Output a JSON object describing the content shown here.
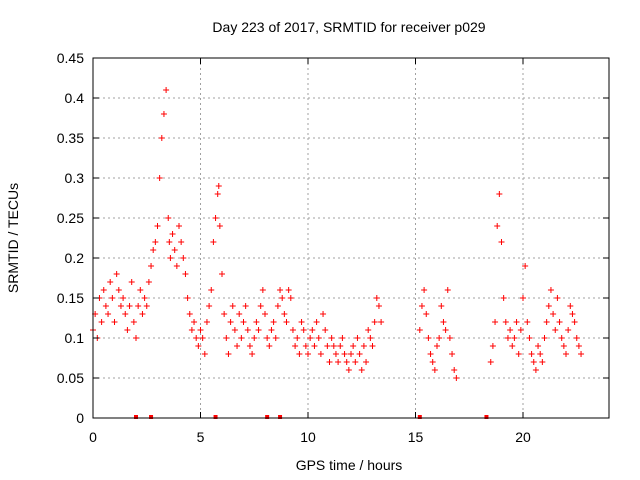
{
  "chart_data": {
    "type": "scatter",
    "title": "Day 223 of 2017, SRMTID for receiver p029",
    "xlabel": "GPS time / hours",
    "ylabel": "SRMTID / TECUs",
    "xlim": [
      0,
      24
    ],
    "ylim": [
      0,
      0.45
    ],
    "xticks": [
      0,
      5,
      10,
      15,
      20
    ],
    "xtick_labels": [
      "0",
      "5",
      "10",
      "15",
      "20"
    ],
    "yticks": [
      0,
      0.05,
      0.1,
      0.15,
      0.2,
      0.25,
      0.3,
      0.35,
      0.4,
      0.45
    ],
    "ytick_labels": [
      "0",
      "0.05",
      "0.1",
      "0.15",
      "0.2",
      "0.25",
      "0.3",
      "0.35",
      "0.4",
      "0.45"
    ],
    "grid": true,
    "marker": "+",
    "series_color": "#ff0000",
    "series": [
      {
        "name": "SRMTID",
        "x": [
          0.0,
          0.1,
          0.2,
          0.3,
          0.4,
          0.5,
          0.6,
          0.7,
          0.8,
          0.9,
          1.0,
          1.1,
          1.2,
          1.3,
          1.4,
          1.5,
          1.6,
          1.7,
          1.8,
          1.9,
          2.0,
          2.1,
          2.2,
          2.3,
          2.4,
          2.5,
          2.6,
          2.7,
          2.8,
          2.9,
          3.0,
          3.1,
          3.2,
          3.3,
          3.4,
          3.5,
          3.55,
          3.6,
          3.7,
          3.8,
          3.9,
          4.0,
          4.1,
          4.2,
          4.3,
          4.4,
          4.5,
          4.6,
          4.7,
          4.8,
          4.9,
          5.0,
          5.1,
          5.2,
          5.3,
          5.4,
          5.5,
          5.6,
          5.7,
          5.8,
          5.85,
          5.9,
          6.0,
          6.1,
          6.2,
          6.3,
          6.4,
          6.5,
          6.6,
          6.7,
          6.8,
          6.9,
          7.0,
          7.1,
          7.2,
          7.3,
          7.4,
          7.5,
          7.6,
          7.7,
          7.8,
          7.9,
          8.0,
          8.1,
          8.2,
          8.3,
          8.4,
          8.5,
          8.6,
          8.7,
          8.8,
          8.9,
          9.0,
          9.1,
          9.2,
          9.3,
          9.4,
          9.5,
          9.6,
          9.7,
          9.8,
          9.9,
          10.0,
          10.1,
          10.2,
          10.3,
          10.4,
          10.5,
          10.6,
          10.7,
          10.8,
          10.9,
          11.0,
          11.1,
          11.2,
          11.3,
          11.4,
          11.5,
          11.6,
          11.7,
          11.8,
          11.9,
          12.0,
          12.1,
          12.2,
          12.3,
          12.4,
          12.5,
          12.6,
          12.7,
          12.8,
          12.9,
          13.0,
          13.1,
          13.2,
          13.3,
          13.4,
          15.2,
          15.3,
          15.4,
          15.5,
          15.6,
          15.7,
          15.8,
          15.9,
          16.0,
          16.1,
          16.2,
          16.3,
          16.4,
          16.5,
          16.6,
          16.7,
          16.8,
          16.9,
          18.5,
          18.6,
          18.7,
          18.8,
          18.9,
          19.0,
          19.1,
          19.2,
          19.3,
          19.4,
          19.5,
          19.6,
          19.7,
          19.8,
          19.9,
          20.0,
          20.1,
          20.2,
          20.3,
          20.4,
          20.5,
          20.6,
          20.7,
          20.8,
          20.9,
          21.0,
          21.1,
          21.2,
          21.3,
          21.4,
          21.5,
          21.6,
          21.7,
          21.8,
          21.9,
          22.0,
          22.1,
          22.2,
          22.3,
          22.4,
          22.5,
          22.6,
          22.7
        ],
        "y": [
          0.11,
          0.13,
          0.1,
          0.15,
          0.12,
          0.16,
          0.14,
          0.13,
          0.17,
          0.15,
          0.12,
          0.18,
          0.16,
          0.14,
          0.15,
          0.13,
          0.11,
          0.14,
          0.17,
          0.12,
          0.1,
          0.14,
          0.16,
          0.13,
          0.15,
          0.14,
          0.17,
          0.19,
          0.21,
          0.22,
          0.24,
          0.3,
          0.35,
          0.38,
          0.41,
          0.25,
          0.22,
          0.2,
          0.23,
          0.21,
          0.19,
          0.24,
          0.22,
          0.2,
          0.18,
          0.15,
          0.13,
          0.11,
          0.12,
          0.1,
          0.09,
          0.11,
          0.1,
          0.08,
          0.12,
          0.14,
          0.16,
          0.22,
          0.25,
          0.28,
          0.29,
          0.24,
          0.18,
          0.13,
          0.1,
          0.08,
          0.12,
          0.14,
          0.11,
          0.09,
          0.13,
          0.1,
          0.12,
          0.14,
          0.11,
          0.09,
          0.08,
          0.1,
          0.12,
          0.11,
          0.14,
          0.16,
          0.13,
          0.1,
          0.09,
          0.11,
          0.12,
          0.1,
          0.14,
          0.16,
          0.15,
          0.13,
          0.12,
          0.16,
          0.15,
          0.11,
          0.09,
          0.1,
          0.08,
          0.12,
          0.11,
          0.09,
          0.08,
          0.1,
          0.11,
          0.09,
          0.12,
          0.1,
          0.08,
          0.13,
          0.11,
          0.09,
          0.07,
          0.1,
          0.09,
          0.08,
          0.07,
          0.09,
          0.1,
          0.08,
          0.07,
          0.06,
          0.08,
          0.09,
          0.07,
          0.1,
          0.08,
          0.06,
          0.09,
          0.07,
          0.11,
          0.1,
          0.09,
          0.12,
          0.15,
          0.14,
          0.12,
          0.11,
          0.14,
          0.16,
          0.13,
          0.1,
          0.08,
          0.07,
          0.06,
          0.09,
          0.1,
          0.14,
          0.12,
          0.11,
          0.16,
          0.1,
          0.08,
          0.06,
          0.05,
          0.07,
          0.09,
          0.12,
          0.24,
          0.28,
          0.22,
          0.15,
          0.12,
          0.1,
          0.11,
          0.09,
          0.1,
          0.12,
          0.08,
          0.11,
          0.15,
          0.19,
          0.12,
          0.1,
          0.08,
          0.07,
          0.06,
          0.09,
          0.08,
          0.07,
          0.1,
          0.12,
          0.14,
          0.16,
          0.13,
          0.11,
          0.15,
          0.12,
          0.1,
          0.09,
          0.08,
          0.11,
          0.14,
          0.13,
          0.12,
          0.1,
          0.09,
          0.08
        ]
      }
    ],
    "baseline_markers_x": [
      2.0,
      2.7,
      5.7,
      8.1,
      8.7,
      15.2,
      18.3
    ]
  }
}
